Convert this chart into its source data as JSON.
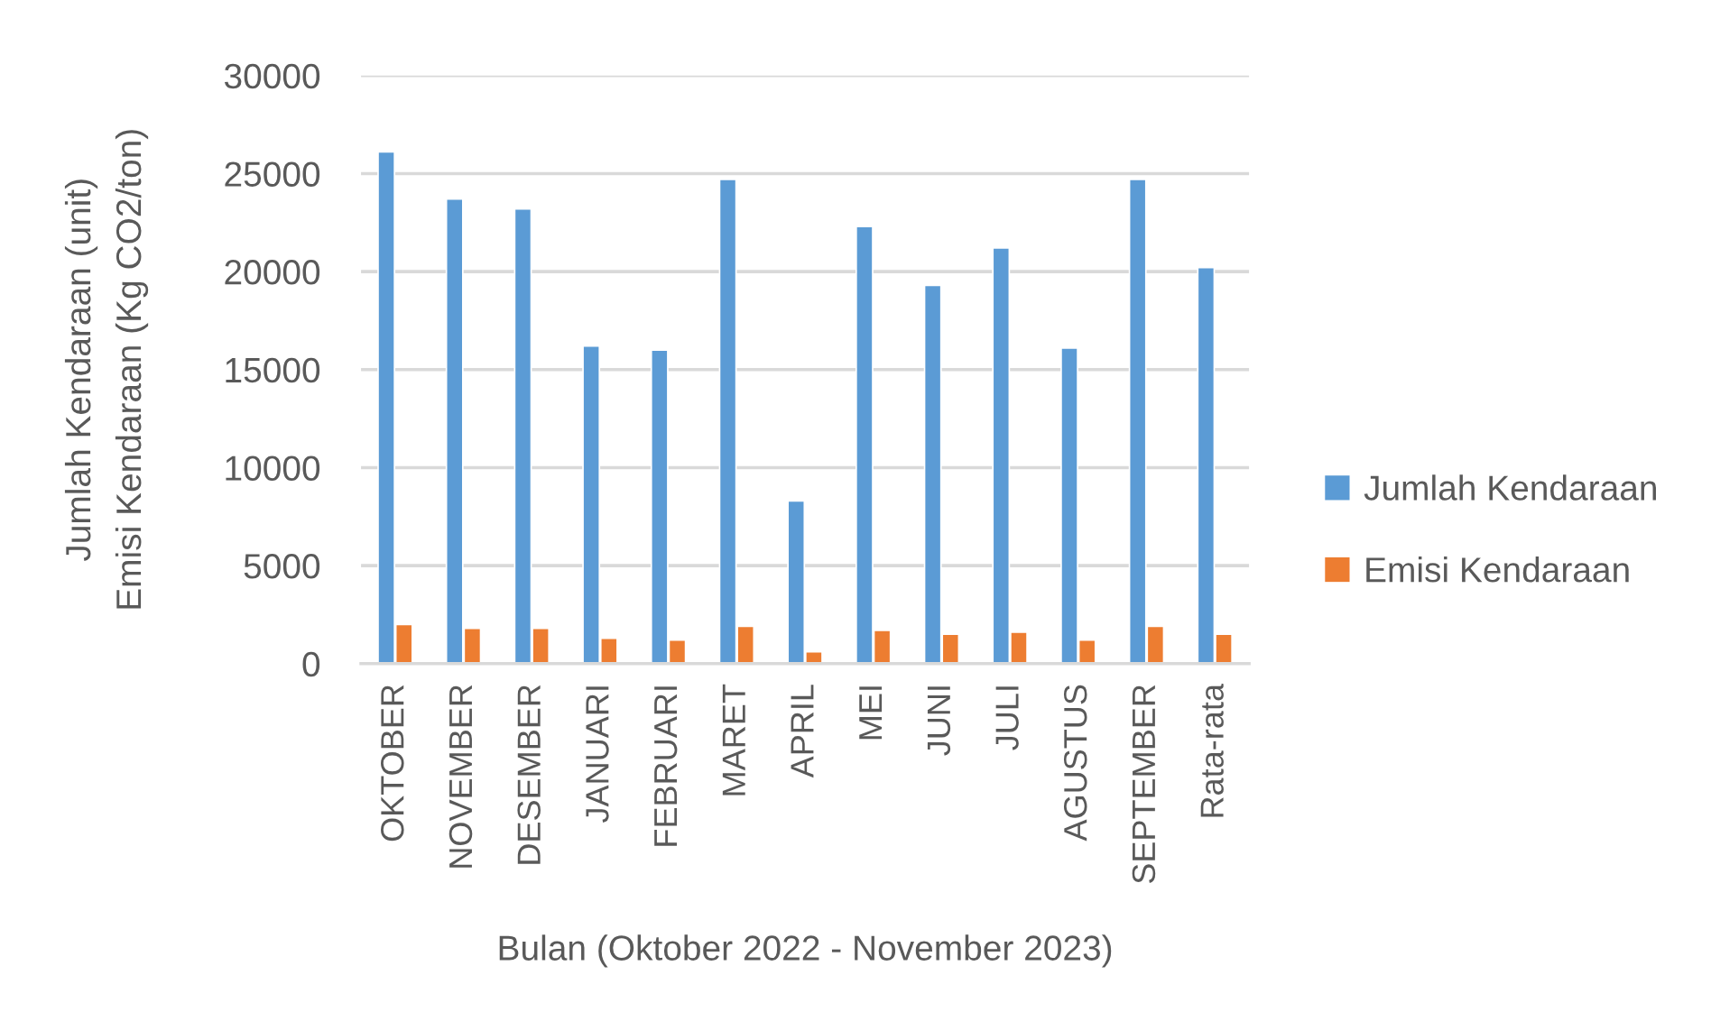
{
  "chart_data": {
    "type": "bar",
    "xlabel": "Bulan (Oktober 2022 - November 2023)",
    "ylabel": "Jumlah Kendaraan (unit)\nEmisi Kendaraan (Kg CO2/ton)",
    "categories": [
      "OKTOBER",
      "NOVEMBER",
      "DESEMBER",
      "JANUARI",
      "FEBRUARI",
      "MARET",
      "APRIL",
      "MEI",
      "JUNI",
      "JULI",
      "AGUSTUS",
      "SEPTEMBER",
      "Rata-rata"
    ],
    "series": [
      {
        "name": "Jumlah Kendaraan",
        "color": "#5b9bd5",
        "values": [
          26100,
          23700,
          23200,
          16200,
          16000,
          24700,
          8300,
          22300,
          19300,
          21200,
          16100,
          24700,
          20200
        ]
      },
      {
        "name": "Emisi Kendaraan",
        "color": "#ed7d31",
        "values": [
          2000,
          1800,
          1800,
          1300,
          1200,
          1900,
          600,
          1700,
          1500,
          1600,
          1200,
          1900,
          1500
        ]
      }
    ],
    "ylim": [
      0,
      30000
    ],
    "yticks": [
      0,
      5000,
      10000,
      15000,
      20000,
      25000,
      30000
    ],
    "grid": "y",
    "legend": "right"
  }
}
